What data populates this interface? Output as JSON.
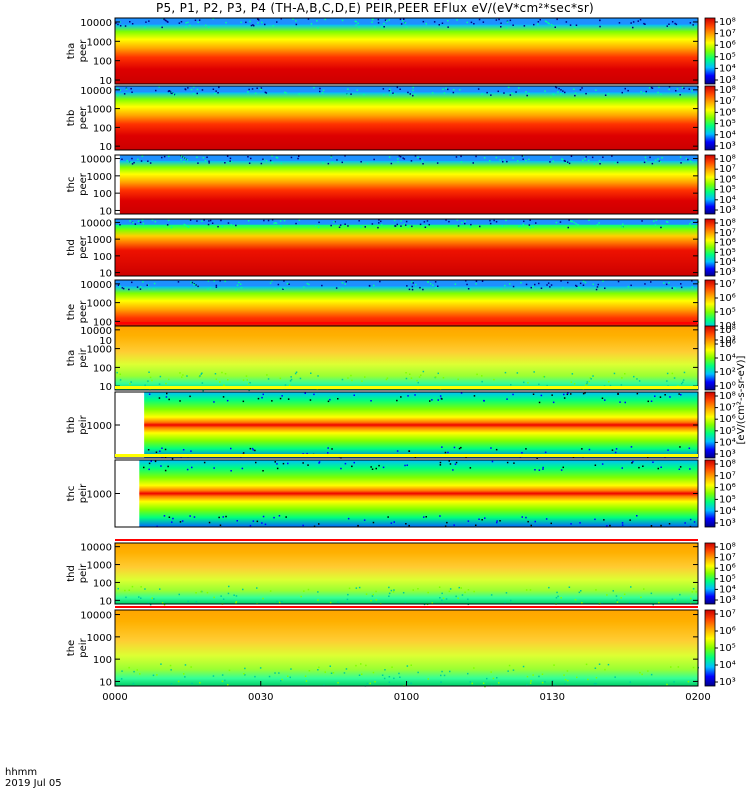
{
  "chart_data": {
    "type": "heatmap",
    "title": "P5, P1, P2, P3, P4 (TH-A,B,C,D,E) PEIR,PEER EFlux eV/(eV*cm²*sec*sr)",
    "x_ticks": [
      "0000",
      "0030",
      "0100",
      "0130",
      "0200"
    ],
    "x_range": [
      "0000",
      "0200"
    ],
    "date": "2019 Jul 05",
    "x_axis_row_label": "hhmm",
    "colorbar_label": "[eV/(cm²-s-sr-eV)]",
    "colormap": [
      "#00008b",
      "#0000ff",
      "#00bfff",
      "#00ff7f",
      "#7fff00",
      "#ffff00",
      "#ffa500",
      "#ff4500",
      "#cc0000"
    ],
    "y_scale": "log",
    "panels": [
      {
        "id": "tha-peer",
        "ylabel_1": "tha",
        "ylabel_2": "peer",
        "y_ticks": [
          "10000",
          "1000",
          "100",
          "10"
        ],
        "data_start": "0000",
        "cbar_ticks": [
          "10⁸",
          "10⁷",
          "10⁶",
          "10⁵",
          "10⁴",
          "10³"
        ],
        "cbar_range_exp": [
          3,
          8
        ]
      },
      {
        "id": "thb-peer",
        "ylabel_1": "thb",
        "ylabel_2": "peer",
        "y_ticks": [
          "10000",
          "1000",
          "100",
          "10"
        ],
        "data_start": "0000",
        "cbar_ticks": [
          "10⁸",
          "10⁷",
          "10⁶",
          "10⁵",
          "10⁴",
          "10³"
        ],
        "cbar_range_exp": [
          3,
          8
        ]
      },
      {
        "id": "thc-peer",
        "ylabel_1": "thc",
        "ylabel_2": "peer",
        "y_ticks": [
          "10000",
          "1000",
          "100",
          "10"
        ],
        "data_start": "0001",
        "cbar_ticks": [
          "10⁸",
          "10⁷",
          "10⁶",
          "10⁵",
          "10⁴",
          "10³"
        ],
        "cbar_range_exp": [
          3,
          8
        ]
      },
      {
        "id": "thd-peer",
        "ylabel_1": "thd",
        "ylabel_2": "peer",
        "y_ticks": [
          "10000",
          "1000",
          "100",
          "10"
        ],
        "data_start": "0000",
        "cbar_ticks": [
          "10⁸",
          "10⁷",
          "10⁶",
          "10⁵",
          "10⁴",
          "10³"
        ],
        "cbar_range_exp": [
          3,
          8
        ]
      },
      {
        "id": "the-peer",
        "ylabel_1": "the",
        "ylabel_2": "peer",
        "y_ticks": [
          "10000",
          "1000",
          "100",
          "10"
        ],
        "data_start": "0000",
        "cbar_ticks": [
          "10⁷",
          "10⁶",
          "10⁵",
          "10⁴",
          "10³"
        ],
        "cbar_range_exp": [
          3,
          7
        ]
      },
      {
        "id": "tha-peir",
        "ylabel_1": "tha",
        "ylabel_2": "peir",
        "y_ticks": [
          "10000",
          "1000",
          "100",
          "10"
        ],
        "data_start": "0000",
        "cbar_ticks": [
          "10⁸",
          "10⁶",
          "10⁴",
          "10²",
          "10⁰"
        ],
        "cbar_range_exp": [
          0,
          8
        ]
      },
      {
        "id": "thb-peir",
        "ylabel_1": "thb",
        "ylabel_2": "peir",
        "y_ticks": [
          "1000"
        ],
        "data_start": "0006",
        "cbar_ticks": [
          "10⁸",
          "10⁷",
          "10⁶",
          "10⁵",
          "10⁴",
          "10³"
        ],
        "cbar_range_exp": [
          3,
          8
        ]
      },
      {
        "id": "thc-peir",
        "ylabel_1": "thc",
        "ylabel_2": "peir",
        "y_ticks": [
          "1000"
        ],
        "data_start": "0005",
        "cbar_ticks": [
          "10⁸",
          "10⁷",
          "10⁶",
          "10⁵",
          "10⁴",
          "10³"
        ],
        "cbar_range_exp": [
          3,
          8
        ]
      },
      {
        "id": "thd-peir",
        "ylabel_1": "thd",
        "ylabel_2": "peir",
        "y_ticks": [
          "10000",
          "1000",
          "100",
          "10"
        ],
        "data_start": "0000",
        "cbar_ticks": [
          "10⁸",
          "10⁷",
          "10⁶",
          "10⁵",
          "10⁴",
          "10³"
        ],
        "cbar_range_exp": [
          3,
          8
        ]
      },
      {
        "id": "the-peir",
        "ylabel_1": "the",
        "ylabel_2": "peir",
        "y_ticks": [
          "10000",
          "1000",
          "100",
          "10"
        ],
        "data_start": "0000",
        "cbar_ticks": [
          "10⁷",
          "10⁶",
          "10⁵",
          "10⁴",
          "10³"
        ],
        "cbar_range_exp": [
          3,
          7
        ]
      }
    ]
  }
}
